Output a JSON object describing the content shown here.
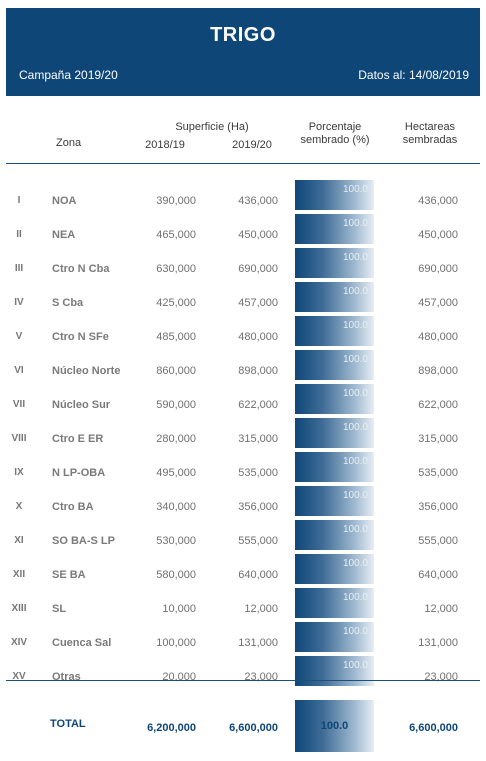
{
  "header": {
    "title": "TRIGO",
    "campaign": "Campaña 2019/20",
    "date": "Datos al: 14/08/2019"
  },
  "columns": {
    "zona": "Zona",
    "superficie": "Superficie (Ha)",
    "year1": "2018/19",
    "year2": "2019/20",
    "porcentaje_l1": "Porcentaje",
    "porcentaje_l2": "sembrado (%)",
    "hectareas_l1": "Hectareas",
    "hectareas_l2": "sembradas"
  },
  "colors": {
    "header_bg": "#0f4678",
    "accent": "#0f4678"
  },
  "rows": [
    {
      "num": "I",
      "zona": "NOA",
      "v1819": "390,000",
      "v1920": "436,000",
      "pct": "100.0",
      "sembradas": "436,000"
    },
    {
      "num": "II",
      "zona": "NEA",
      "v1819": "465,000",
      "v1920": "450,000",
      "pct": "100.0",
      "sembradas": "450,000"
    },
    {
      "num": "III",
      "zona": "Ctro N Cba",
      "v1819": "630,000",
      "v1920": "690,000",
      "pct": "100.0",
      "sembradas": "690,000"
    },
    {
      "num": "IV",
      "zona": "S Cba",
      "v1819": "425,000",
      "v1920": "457,000",
      "pct": "100.0",
      "sembradas": "457,000"
    },
    {
      "num": "V",
      "zona": "Ctro N SFe",
      "v1819": "485,000",
      "v1920": "480,000",
      "pct": "100.0",
      "sembradas": "480,000"
    },
    {
      "num": "VI",
      "zona": "Núcleo Norte",
      "v1819": "860,000",
      "v1920": "898,000",
      "pct": "100.0",
      "sembradas": "898,000"
    },
    {
      "num": "VII",
      "zona": "Núcleo Sur",
      "v1819": "590,000",
      "v1920": "622,000",
      "pct": "100.0",
      "sembradas": "622,000"
    },
    {
      "num": "VIII",
      "zona": "Ctro E ER",
      "v1819": "280,000",
      "v1920": "315,000",
      "pct": "100.0",
      "sembradas": "315,000"
    },
    {
      "num": "IX",
      "zona": "N LP-OBA",
      "v1819": "495,000",
      "v1920": "535,000",
      "pct": "100.0",
      "sembradas": "535,000"
    },
    {
      "num": "X",
      "zona": "Ctro BA",
      "v1819": "340,000",
      "v1920": "356,000",
      "pct": "100.0",
      "sembradas": "356,000"
    },
    {
      "num": "XI",
      "zona": "SO BA-S LP",
      "v1819": "530,000",
      "v1920": "555,000",
      "pct": "100.0",
      "sembradas": "555,000"
    },
    {
      "num": "XII",
      "zona": "SE BA",
      "v1819": "580,000",
      "v1920": "640,000",
      "pct": "100.0",
      "sembradas": "640,000"
    },
    {
      "num": "XIII",
      "zona": "SL",
      "v1819": "10,000",
      "v1920": "12,000",
      "pct": "100.0",
      "sembradas": "12,000"
    },
    {
      "num": "XIV",
      "zona": "Cuenca Sal",
      "v1819": "100,000",
      "v1920": "131,000",
      "pct": "100.0",
      "sembradas": "131,000"
    },
    {
      "num": "XV",
      "zona": "Otras",
      "v1819": "20,000",
      "v1920": "23,000",
      "pct": "100.0",
      "sembradas": "23,000"
    }
  ],
  "total": {
    "label": "TOTAL",
    "v1819": "6,200,000",
    "v1920": "6,600,000",
    "pct": "100.0",
    "sembradas": "6,600,000"
  }
}
